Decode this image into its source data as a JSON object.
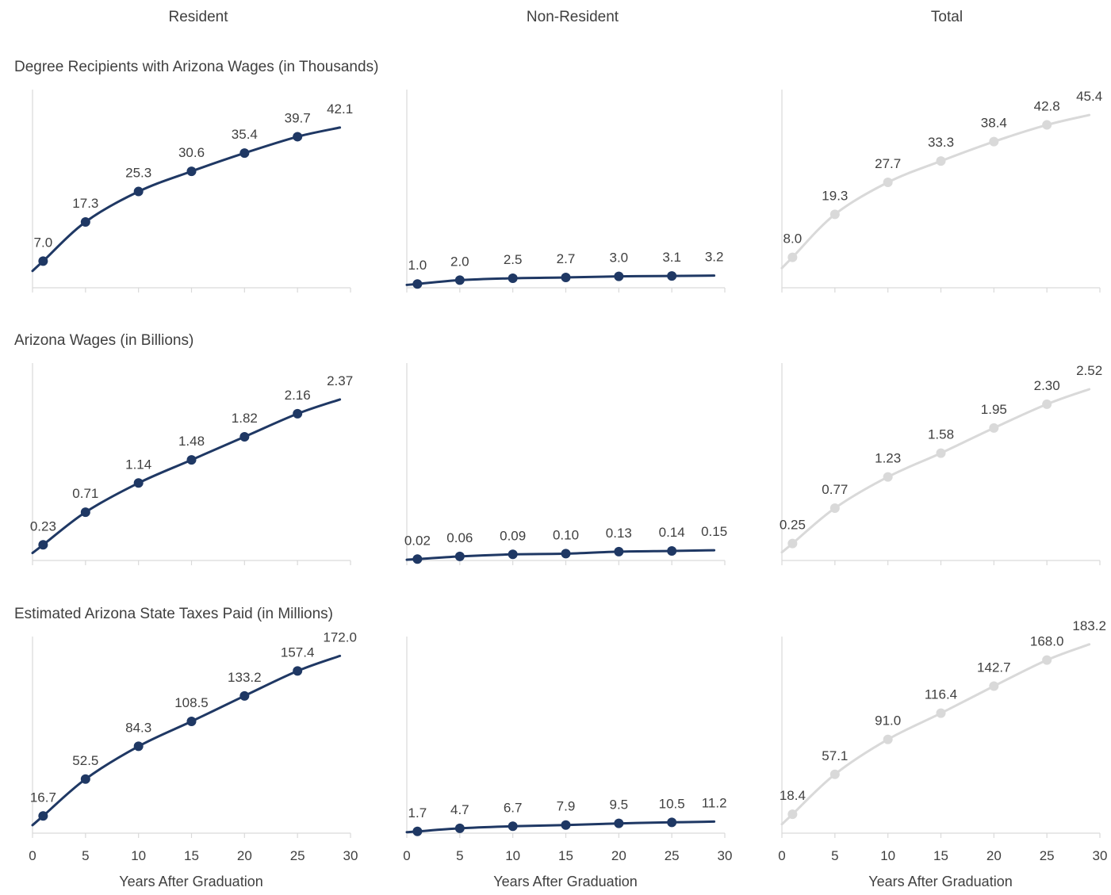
{
  "column_headers": [
    "Resident",
    "Non-Resident",
    "Total"
  ],
  "row_titles": [
    "Degree Recipients with Arizona Wages (in Thousands)",
    "Arizona Wages (in Billions)",
    "Estimated Arizona State Taxes Paid (in Millions)"
  ],
  "xlabel": "Years After Graduation",
  "x_ticks": [
    "0",
    "5",
    "10",
    "15",
    "20",
    "25",
    "30"
  ],
  "colors": {
    "resident": "#1f3864",
    "non_resident": "#1f3864",
    "total": "#d9d9d9"
  },
  "chart_data": [
    {
      "type": "line",
      "row": 0,
      "col": 0,
      "title": "Degree Recipients with Arizona Wages (in Thousands)",
      "column": "Resident",
      "x": [
        1,
        5,
        10,
        15,
        20,
        25
      ],
      "x_end": 29,
      "values": [
        7.0,
        17.3,
        25.3,
        30.6,
        35.4,
        39.7
      ],
      "end_value": 42.1,
      "labels": [
        "7.0",
        "17.3",
        "25.3",
        "30.6",
        "35.4",
        "39.7",
        "42.1"
      ],
      "ylim": [
        0,
        50
      ],
      "xlim": [
        0,
        30
      ]
    },
    {
      "type": "line",
      "row": 0,
      "col": 1,
      "title": "Degree Recipients with Arizona Wages (in Thousands)",
      "column": "Non-Resident",
      "x": [
        1,
        5,
        10,
        15,
        20,
        25
      ],
      "x_end": 29,
      "values": [
        1.0,
        2.0,
        2.5,
        2.7,
        3.0,
        3.1
      ],
      "end_value": 3.2,
      "labels": [
        "1.0",
        "2.0",
        "2.5",
        "2.7",
        "3.0",
        "3.1",
        "3.2"
      ],
      "ylim": [
        0,
        50
      ],
      "xlim": [
        0,
        30
      ]
    },
    {
      "type": "line",
      "row": 0,
      "col": 2,
      "title": "Degree Recipients with Arizona Wages (in Thousands)",
      "column": "Total",
      "x": [
        1,
        5,
        10,
        15,
        20,
        25
      ],
      "x_end": 29,
      "values": [
        8.0,
        19.3,
        27.7,
        33.3,
        38.4,
        42.8
      ],
      "end_value": 45.4,
      "labels": [
        "8.0",
        "19.3",
        "27.7",
        "33.3",
        "38.4",
        "42.8",
        "45.4"
      ],
      "ylim": [
        0,
        50
      ],
      "xlim": [
        0,
        30
      ]
    },
    {
      "type": "line",
      "row": 1,
      "col": 0,
      "title": "Arizona Wages (in Billions)",
      "column": "Resident",
      "x": [
        1,
        5,
        10,
        15,
        20,
        25
      ],
      "x_end": 29,
      "values": [
        0.23,
        0.71,
        1.14,
        1.48,
        1.82,
        2.16
      ],
      "end_value": 2.37,
      "labels": [
        "0.23",
        "0.71",
        "1.14",
        "1.48",
        "1.82",
        "2.16",
        "2.37"
      ],
      "ylim": [
        0,
        2.8
      ],
      "xlim": [
        0,
        30
      ]
    },
    {
      "type": "line",
      "row": 1,
      "col": 1,
      "title": "Arizona Wages (in Billions)",
      "column": "Non-Resident",
      "x": [
        1,
        5,
        10,
        15,
        20,
        25
      ],
      "x_end": 29,
      "values": [
        0.02,
        0.06,
        0.09,
        0.1,
        0.13,
        0.14
      ],
      "end_value": 0.15,
      "labels": [
        "0.02",
        "0.06",
        "0.09",
        "0.10",
        "0.13",
        "0.14",
        "0.15"
      ],
      "ylim": [
        0,
        2.8
      ],
      "xlim": [
        0,
        30
      ]
    },
    {
      "type": "line",
      "row": 1,
      "col": 2,
      "title": "Arizona Wages (in Billions)",
      "column": "Total",
      "x": [
        1,
        5,
        10,
        15,
        20,
        25
      ],
      "x_end": 29,
      "values": [
        0.25,
        0.77,
        1.23,
        1.58,
        1.95,
        2.3
      ],
      "end_value": 2.52,
      "labels": [
        "0.25",
        "0.77",
        "1.23",
        "1.58",
        "1.95",
        "2.30",
        "2.52"
      ],
      "ylim": [
        0,
        2.8
      ],
      "xlim": [
        0,
        30
      ]
    },
    {
      "type": "line",
      "row": 2,
      "col": 0,
      "title": "Estimated Arizona State Taxes Paid (in Millions)",
      "column": "Resident",
      "x": [
        1,
        5,
        10,
        15,
        20,
        25
      ],
      "x_end": 29,
      "values": [
        16.7,
        52.5,
        84.3,
        108.5,
        133.2,
        157.4
      ],
      "end_value": 172.0,
      "labels": [
        "16.7",
        "52.5",
        "84.3",
        "108.5",
        "133.2",
        "157.4",
        "172.0"
      ],
      "ylim": [
        0,
        200
      ],
      "xlim": [
        0,
        30
      ]
    },
    {
      "type": "line",
      "row": 2,
      "col": 1,
      "title": "Estimated Arizona State Taxes Paid (in Millions)",
      "column": "Non-Resident",
      "x": [
        1,
        5,
        10,
        15,
        20,
        25
      ],
      "x_end": 29,
      "values": [
        1.7,
        4.7,
        6.7,
        7.9,
        9.5,
        10.5
      ],
      "end_value": 11.2,
      "labels": [
        "1.7",
        "4.7",
        "6.7",
        "7.9",
        "9.5",
        "10.5",
        "11.2"
      ],
      "ylim": [
        0,
        200
      ],
      "xlim": [
        0,
        30
      ]
    },
    {
      "type": "line",
      "row": 2,
      "col": 2,
      "title": "Estimated Arizona State Taxes Paid (in Millions)",
      "column": "Total",
      "x": [
        1,
        5,
        10,
        15,
        20,
        25
      ],
      "x_end": 29,
      "values": [
        18.4,
        57.1,
        91.0,
        116.4,
        142.7,
        168.0
      ],
      "end_value": 183.2,
      "labels": [
        "18.4",
        "57.1",
        "91.0",
        "116.4",
        "142.7",
        "168.0",
        "183.2"
      ],
      "ylim": [
        0,
        200
      ],
      "xlim": [
        0,
        30
      ]
    }
  ]
}
